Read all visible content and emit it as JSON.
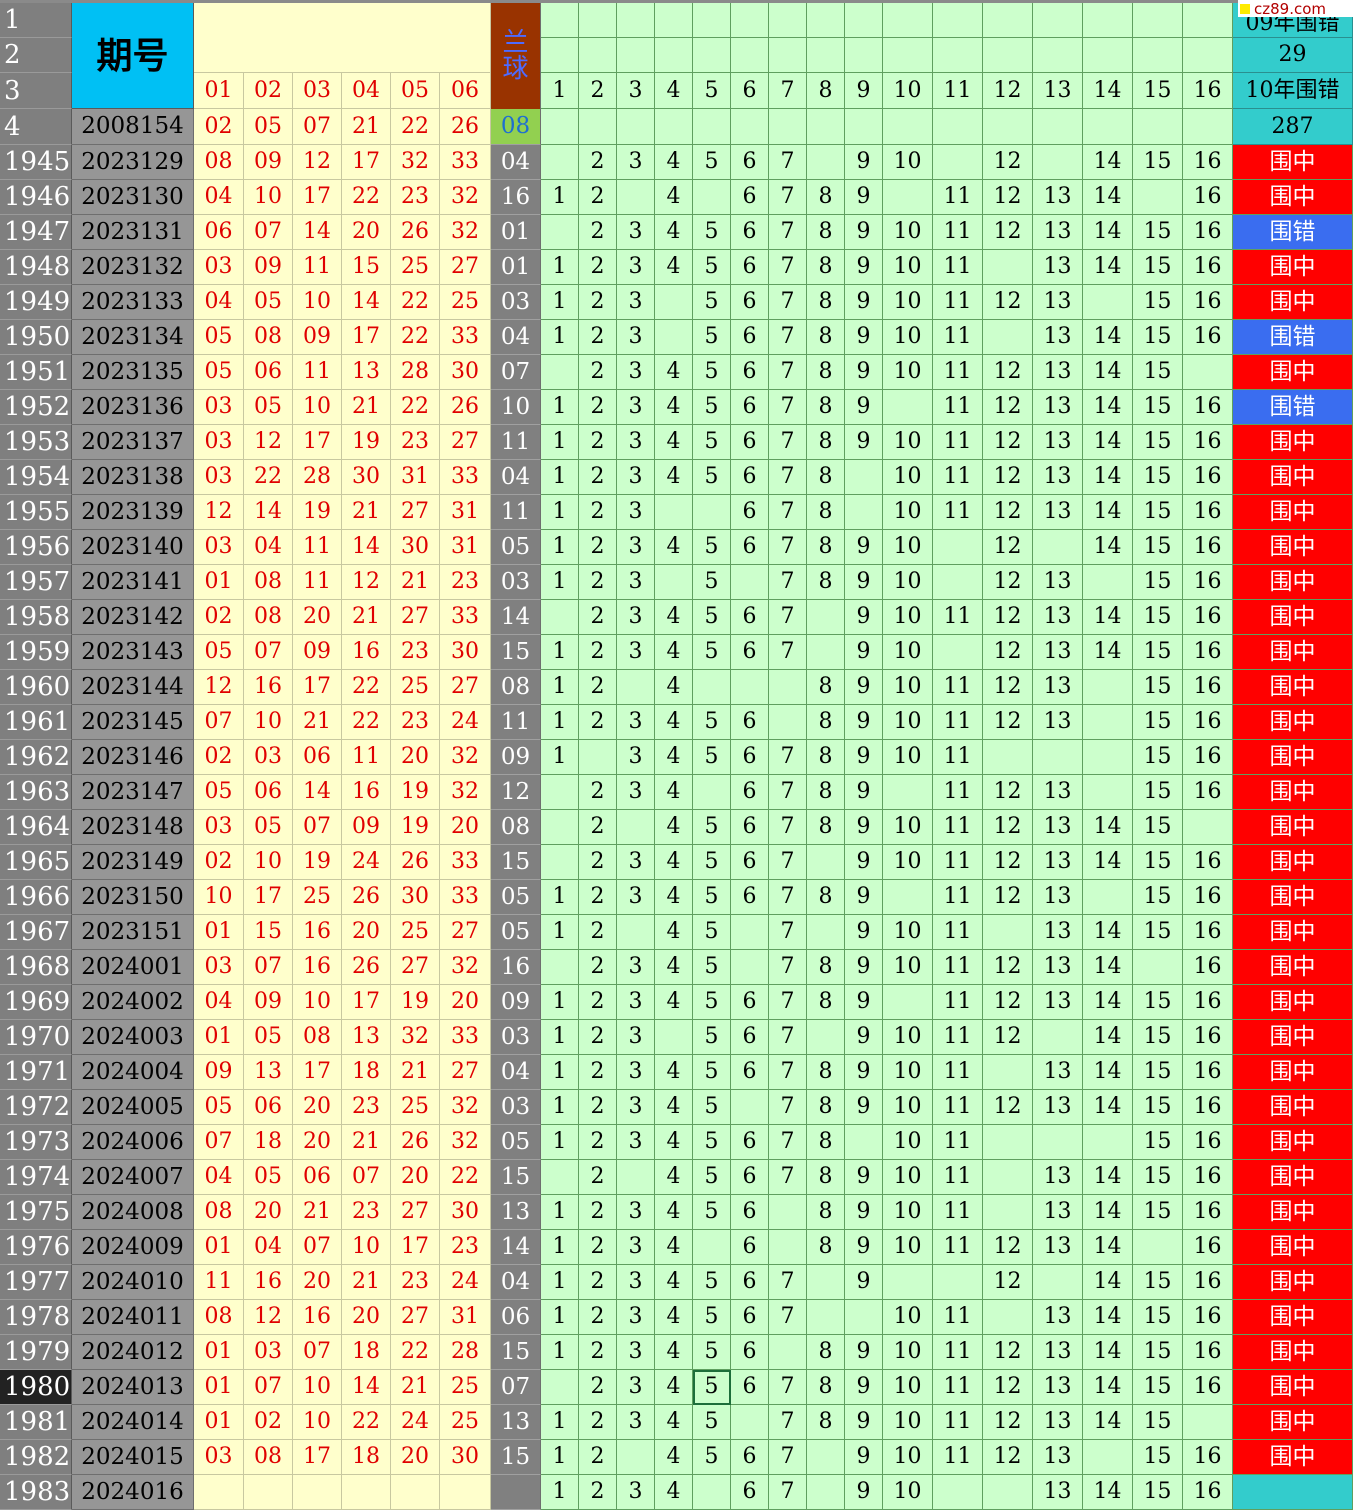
{
  "header": {
    "period_label": "期号",
    "blue_ball_label": [
      "兰",
      "球"
    ],
    "red_col_labels": [
      "01",
      "02",
      "03",
      "04",
      "05",
      "06"
    ],
    "position_labels": [
      "1",
      "2",
      "3",
      "4",
      "5",
      "6",
      "7",
      "8",
      "9",
      "10",
      "11",
      "12",
      "13",
      "14",
      "15",
      "16"
    ],
    "right_labels": [
      "09年围错",
      "29",
      "10年围错",
      "287"
    ],
    "row_numbers": [
      "1",
      "2",
      "3",
      "4"
    ],
    "sample_row": {
      "period": "2008154",
      "reds": [
        "02",
        "05",
        "07",
        "21",
        "22",
        "26"
      ],
      "blue": "08"
    }
  },
  "watermark": "cz89.com",
  "rows": [
    {
      "n": "1945",
      "p": "2023129",
      "r": [
        "08",
        "09",
        "12",
        "17",
        "32",
        "33"
      ],
      "b": "04",
      "m": [
        2,
        3,
        4,
        5,
        6,
        7,
        9,
        10,
        12,
        14,
        15,
        16
      ],
      "s": "围中"
    },
    {
      "n": "1946",
      "p": "2023130",
      "r": [
        "04",
        "10",
        "17",
        "22",
        "23",
        "32"
      ],
      "b": "16",
      "m": [
        1,
        2,
        4,
        6,
        7,
        8,
        9,
        11,
        12,
        13,
        14,
        16
      ],
      "s": "围中"
    },
    {
      "n": "1947",
      "p": "2023131",
      "r": [
        "06",
        "07",
        "14",
        "20",
        "26",
        "32"
      ],
      "b": "01",
      "m": [
        2,
        3,
        4,
        5,
        6,
        7,
        8,
        9,
        10,
        11,
        12,
        13,
        14,
        15,
        16
      ],
      "s": "围错"
    },
    {
      "n": "1948",
      "p": "2023132",
      "r": [
        "03",
        "09",
        "11",
        "15",
        "25",
        "27"
      ],
      "b": "01",
      "m": [
        1,
        2,
        3,
        4,
        5,
        6,
        7,
        8,
        9,
        10,
        11,
        13,
        14,
        15,
        16
      ],
      "s": "围中"
    },
    {
      "n": "1949",
      "p": "2023133",
      "r": [
        "04",
        "05",
        "10",
        "14",
        "22",
        "25"
      ],
      "b": "03",
      "m": [
        1,
        2,
        3,
        5,
        6,
        7,
        8,
        9,
        10,
        11,
        12,
        13,
        15,
        16
      ],
      "s": "围中"
    },
    {
      "n": "1950",
      "p": "2023134",
      "r": [
        "05",
        "08",
        "09",
        "17",
        "22",
        "33"
      ],
      "b": "04",
      "m": [
        1,
        2,
        3,
        5,
        6,
        7,
        8,
        9,
        10,
        11,
        13,
        14,
        15,
        16
      ],
      "s": "围错"
    },
    {
      "n": "1951",
      "p": "2023135",
      "r": [
        "05",
        "06",
        "11",
        "13",
        "28",
        "30"
      ],
      "b": "07",
      "m": [
        2,
        3,
        4,
        5,
        6,
        7,
        8,
        9,
        10,
        11,
        12,
        13,
        14,
        15
      ],
      "s": "围中"
    },
    {
      "n": "1952",
      "p": "2023136",
      "r": [
        "03",
        "05",
        "10",
        "21",
        "22",
        "26"
      ],
      "b": "10",
      "m": [
        1,
        2,
        3,
        4,
        5,
        6,
        7,
        8,
        9,
        11,
        12,
        13,
        14,
        15,
        16
      ],
      "s": "围错"
    },
    {
      "n": "1953",
      "p": "2023137",
      "r": [
        "03",
        "12",
        "17",
        "19",
        "23",
        "27"
      ],
      "b": "11",
      "m": [
        1,
        2,
        3,
        4,
        5,
        6,
        7,
        8,
        9,
        10,
        11,
        12,
        13,
        14,
        15,
        16
      ],
      "s": "围中"
    },
    {
      "n": "1954",
      "p": "2023138",
      "r": [
        "03",
        "22",
        "28",
        "30",
        "31",
        "33"
      ],
      "b": "04",
      "m": [
        1,
        2,
        3,
        4,
        5,
        6,
        7,
        8,
        10,
        11,
        12,
        13,
        14,
        15,
        16
      ],
      "s": "围中"
    },
    {
      "n": "1955",
      "p": "2023139",
      "r": [
        "12",
        "14",
        "19",
        "21",
        "27",
        "31"
      ],
      "b": "11",
      "m": [
        1,
        2,
        3,
        6,
        7,
        8,
        10,
        11,
        12,
        13,
        14,
        15,
        16
      ],
      "s": "围中"
    },
    {
      "n": "1956",
      "p": "2023140",
      "r": [
        "03",
        "04",
        "11",
        "14",
        "30",
        "31"
      ],
      "b": "05",
      "m": [
        1,
        2,
        3,
        4,
        5,
        6,
        7,
        8,
        9,
        10,
        12,
        14,
        15,
        16
      ],
      "s": "围中"
    },
    {
      "n": "1957",
      "p": "2023141",
      "r": [
        "01",
        "08",
        "11",
        "12",
        "21",
        "23"
      ],
      "b": "03",
      "m": [
        1,
        2,
        3,
        5,
        7,
        8,
        9,
        10,
        12,
        13,
        15,
        16
      ],
      "s": "围中"
    },
    {
      "n": "1958",
      "p": "2023142",
      "r": [
        "02",
        "08",
        "20",
        "21",
        "27",
        "33"
      ],
      "b": "14",
      "m": [
        2,
        3,
        4,
        5,
        6,
        7,
        9,
        10,
        11,
        12,
        13,
        14,
        15,
        16
      ],
      "s": "围中"
    },
    {
      "n": "1959",
      "p": "2023143",
      "r": [
        "05",
        "07",
        "09",
        "16",
        "23",
        "30"
      ],
      "b": "15",
      "m": [
        1,
        2,
        3,
        4,
        5,
        6,
        7,
        9,
        10,
        12,
        13,
        14,
        15,
        16
      ],
      "s": "围中"
    },
    {
      "n": "1960",
      "p": "2023144",
      "r": [
        "12",
        "16",
        "17",
        "22",
        "25",
        "27"
      ],
      "b": "08",
      "m": [
        1,
        2,
        4,
        8,
        9,
        10,
        11,
        12,
        13,
        15,
        16
      ],
      "s": "围中"
    },
    {
      "n": "1961",
      "p": "2023145",
      "r": [
        "07",
        "10",
        "21",
        "22",
        "23",
        "24"
      ],
      "b": "11",
      "m": [
        1,
        2,
        3,
        4,
        5,
        6,
        8,
        9,
        10,
        11,
        12,
        13,
        15,
        16
      ],
      "s": "围中"
    },
    {
      "n": "1962",
      "p": "2023146",
      "r": [
        "02",
        "03",
        "06",
        "11",
        "20",
        "32"
      ],
      "b": "09",
      "m": [
        1,
        3,
        4,
        5,
        6,
        7,
        8,
        9,
        10,
        11,
        15,
        16
      ],
      "s": "围中"
    },
    {
      "n": "1963",
      "p": "2023147",
      "r": [
        "05",
        "06",
        "14",
        "16",
        "19",
        "32"
      ],
      "b": "12",
      "m": [
        2,
        3,
        4,
        6,
        7,
        8,
        9,
        11,
        12,
        13,
        15,
        16
      ],
      "s": "围中"
    },
    {
      "n": "1964",
      "p": "2023148",
      "r": [
        "03",
        "05",
        "07",
        "09",
        "19",
        "20"
      ],
      "b": "08",
      "m": [
        2,
        4,
        5,
        6,
        7,
        8,
        9,
        10,
        11,
        12,
        13,
        14,
        15
      ],
      "s": "围中"
    },
    {
      "n": "1965",
      "p": "2023149",
      "r": [
        "02",
        "10",
        "19",
        "24",
        "26",
        "33"
      ],
      "b": "15",
      "m": [
        2,
        3,
        4,
        5,
        6,
        7,
        9,
        10,
        11,
        12,
        13,
        14,
        15,
        16
      ],
      "s": "围中"
    },
    {
      "n": "1966",
      "p": "2023150",
      "r": [
        "10",
        "17",
        "25",
        "26",
        "30",
        "33"
      ],
      "b": "05",
      "m": [
        1,
        2,
        3,
        4,
        5,
        6,
        7,
        8,
        9,
        11,
        12,
        13,
        15,
        16
      ],
      "s": "围中"
    },
    {
      "n": "1967",
      "p": "2023151",
      "r": [
        "01",
        "15",
        "16",
        "20",
        "25",
        "27"
      ],
      "b": "05",
      "m": [
        1,
        2,
        4,
        5,
        7,
        9,
        10,
        11,
        13,
        14,
        15,
        16
      ],
      "s": "围中"
    },
    {
      "n": "1968",
      "p": "2024001",
      "r": [
        "03",
        "07",
        "16",
        "26",
        "27",
        "32"
      ],
      "b": "16",
      "m": [
        2,
        3,
        4,
        5,
        7,
        8,
        9,
        10,
        11,
        12,
        13,
        14,
        16
      ],
      "s": "围中"
    },
    {
      "n": "1969",
      "p": "2024002",
      "r": [
        "04",
        "09",
        "10",
        "17",
        "19",
        "20"
      ],
      "b": "09",
      "m": [
        1,
        2,
        3,
        4,
        5,
        6,
        7,
        8,
        9,
        11,
        12,
        13,
        14,
        15,
        16
      ],
      "s": "围中"
    },
    {
      "n": "1970",
      "p": "2024003",
      "r": [
        "01",
        "05",
        "08",
        "13",
        "32",
        "33"
      ],
      "b": "03",
      "m": [
        1,
        2,
        3,
        5,
        6,
        7,
        9,
        10,
        11,
        12,
        14,
        15,
        16
      ],
      "s": "围中"
    },
    {
      "n": "1971",
      "p": "2024004",
      "r": [
        "09",
        "13",
        "17",
        "18",
        "21",
        "27"
      ],
      "b": "04",
      "m": [
        1,
        2,
        3,
        4,
        5,
        6,
        7,
        8,
        9,
        10,
        11,
        13,
        14,
        15,
        16
      ],
      "s": "围中"
    },
    {
      "n": "1972",
      "p": "2024005",
      "r": [
        "05",
        "06",
        "20",
        "23",
        "25",
        "32"
      ],
      "b": "03",
      "m": [
        1,
        2,
        3,
        4,
        5,
        7,
        8,
        9,
        10,
        11,
        12,
        13,
        14,
        15,
        16
      ],
      "s": "围中"
    },
    {
      "n": "1973",
      "p": "2024006",
      "r": [
        "07",
        "18",
        "20",
        "21",
        "26",
        "32"
      ],
      "b": "05",
      "m": [
        1,
        2,
        3,
        4,
        5,
        6,
        7,
        8,
        10,
        11,
        15,
        16
      ],
      "s": "围中"
    },
    {
      "n": "1974",
      "p": "2024007",
      "r": [
        "04",
        "05",
        "06",
        "07",
        "20",
        "22"
      ],
      "b": "15",
      "m": [
        2,
        4,
        5,
        6,
        7,
        8,
        9,
        10,
        11,
        13,
        14,
        15,
        16
      ],
      "s": "围中"
    },
    {
      "n": "1975",
      "p": "2024008",
      "r": [
        "08",
        "20",
        "21",
        "23",
        "27",
        "30"
      ],
      "b": "13",
      "m": [
        1,
        2,
        3,
        4,
        5,
        6,
        8,
        9,
        10,
        11,
        13,
        14,
        15,
        16
      ],
      "s": "围中"
    },
    {
      "n": "1976",
      "p": "2024009",
      "r": [
        "01",
        "04",
        "07",
        "10",
        "17",
        "23"
      ],
      "b": "14",
      "m": [
        1,
        2,
        3,
        4,
        6,
        8,
        9,
        10,
        11,
        12,
        13,
        14,
        16
      ],
      "s": "围中"
    },
    {
      "n": "1977",
      "p": "2024010",
      "r": [
        "11",
        "16",
        "20",
        "21",
        "23",
        "24"
      ],
      "b": "04",
      "m": [
        1,
        2,
        3,
        4,
        5,
        6,
        7,
        9,
        12,
        14,
        15,
        16
      ],
      "s": "围中"
    },
    {
      "n": "1978",
      "p": "2024011",
      "r": [
        "08",
        "12",
        "16",
        "20",
        "27",
        "31"
      ],
      "b": "06",
      "m": [
        1,
        2,
        3,
        4,
        5,
        6,
        7,
        10,
        11,
        13,
        14,
        15,
        16
      ],
      "s": "围中"
    },
    {
      "n": "1979",
      "p": "2024012",
      "r": [
        "01",
        "03",
        "07",
        "18",
        "22",
        "28"
      ],
      "b": "15",
      "m": [
        1,
        2,
        3,
        4,
        5,
        6,
        8,
        9,
        10,
        11,
        12,
        13,
        14,
        15,
        16
      ],
      "s": "围中"
    },
    {
      "n": "1980",
      "p": "2024013",
      "r": [
        "01",
        "07",
        "10",
        "14",
        "21",
        "25"
      ],
      "b": "07",
      "m": [
        2,
        3,
        4,
        5,
        6,
        7,
        8,
        9,
        10,
        11,
        12,
        13,
        14,
        15,
        16
      ],
      "s": "围中"
    },
    {
      "n": "1981",
      "p": "2024014",
      "r": [
        "01",
        "02",
        "10",
        "22",
        "24",
        "25"
      ],
      "b": "13",
      "m": [
        1,
        2,
        3,
        4,
        5,
        7,
        8,
        9,
        10,
        11,
        12,
        13,
        14,
        15
      ],
      "s": "围中"
    },
    {
      "n": "1982",
      "p": "2024015",
      "r": [
        "03",
        "08",
        "17",
        "18",
        "20",
        "30"
      ],
      "b": "15",
      "m": [
        1,
        2,
        4,
        5,
        6,
        7,
        9,
        10,
        11,
        12,
        13,
        15,
        16
      ],
      "s": "围中"
    },
    {
      "n": "1983",
      "p": "2024016",
      "r": [
        "",
        "",
        "",
        "",
        "",
        ""
      ],
      "b": "",
      "m": [
        1,
        2,
        3,
        4,
        6,
        7,
        9,
        10,
        13,
        14,
        15,
        16
      ],
      "s": ""
    }
  ],
  "selection": {
    "row_number": "1980",
    "column_label": "5"
  },
  "colors": {
    "hit": "#ff0000",
    "miss": "#3a6df0",
    "header_cyan": "#00c0f4",
    "red_text": "#e00000",
    "grid_green": "#ccffcc",
    "result_teal": "#33cccc"
  }
}
